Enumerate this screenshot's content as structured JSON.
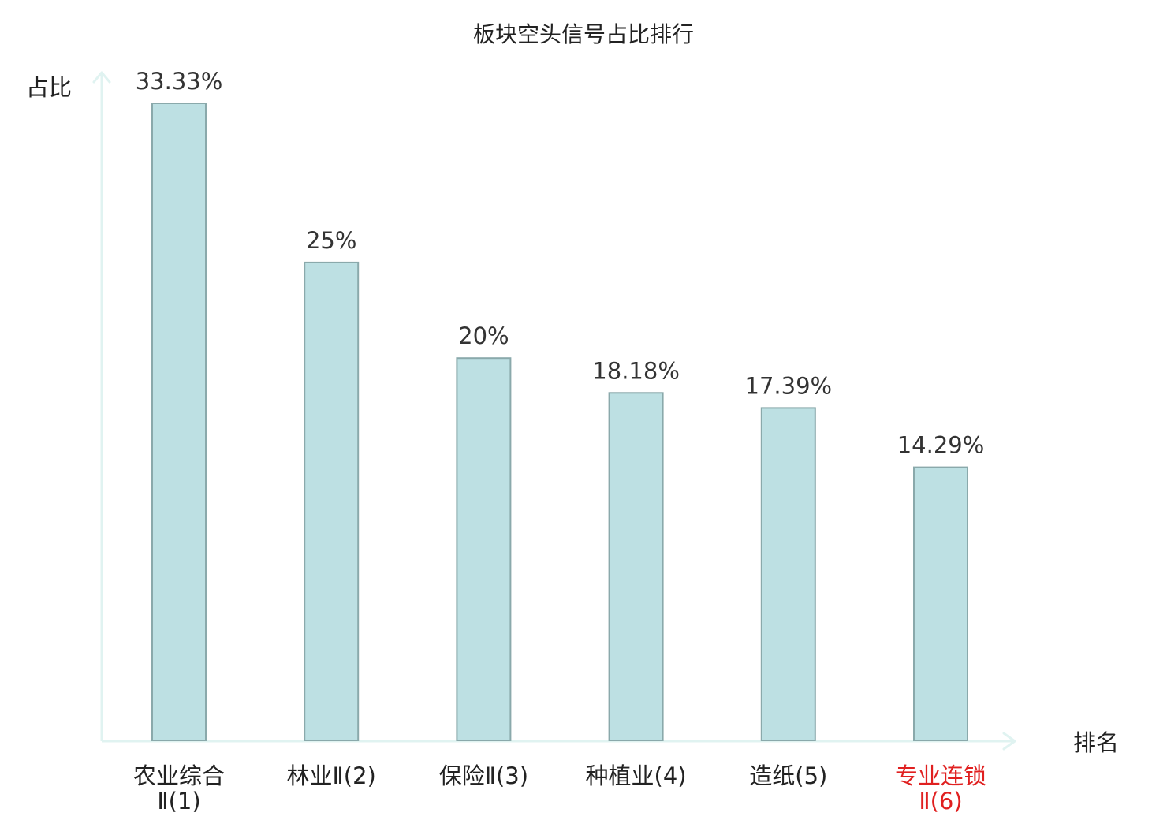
{
  "chart_data": {
    "type": "bar",
    "title": "板块空头信号占比排行",
    "ylabel": "占比",
    "xlabel": "排名",
    "ylim": [
      0,
      35
    ],
    "grid": false,
    "categories": [
      {
        "line1": "农业综合",
        "line2": "Ⅱ(1)"
      },
      {
        "line1": "林业Ⅱ(2)",
        "line2": ""
      },
      {
        "line1": "保险Ⅱ(3)",
        "line2": ""
      },
      {
        "line1": "种植业(4)",
        "line2": ""
      },
      {
        "line1": "造纸(5)",
        "line2": ""
      },
      {
        "line1": "专业连锁",
        "line2": "Ⅱ(6)"
      }
    ],
    "values": [
      33.33,
      25,
      20,
      18.18,
      17.39,
      14.29
    ],
    "value_labels": [
      "33.33%",
      "25%",
      "20%",
      "18.18%",
      "17.39%",
      "14.29%"
    ],
    "highlight_index": 5,
    "colors": {
      "bar_fill": "#bde0e3",
      "bar_stroke": "#8aa9ab",
      "axis": "#e0f3f1",
      "text": "#222222",
      "value_text": "#333333",
      "highlight_text": "#e02020"
    }
  }
}
